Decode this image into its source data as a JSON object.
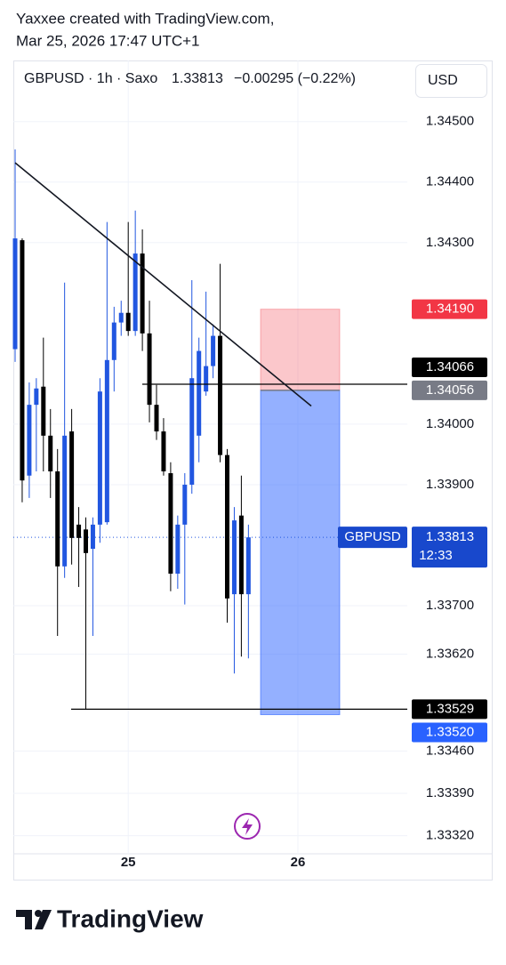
{
  "header": {
    "author_line": "Yaxxee created with TradingView.com,",
    "date_line": "Mar 25, 2026 17:47 UTC+1"
  },
  "chart_data": {
    "type": "candlestick",
    "symbol_info": "GBPUSD · 1h · Saxo",
    "last": "1.33813",
    "change": "−0.00295 (−0.22%)",
    "currency": "USD",
    "categories": [
      null,
      null,
      null,
      null,
      null,
      null,
      null,
      null,
      null,
      null,
      null,
      null,
      null,
      null,
      null,
      null,
      "25",
      null,
      null,
      null,
      null,
      null,
      null,
      null,
      null,
      null,
      null,
      null,
      null,
      null,
      null,
      null,
      null,
      null,
      null,
      null,
      null,
      null,
      null,
      null,
      "26",
      null,
      null,
      null,
      null,
      null,
      null,
      null,
      null,
      null,
      null,
      null,
      null,
      null,
      null,
      null
    ],
    "series": [
      {
        "name": "GBPUSD",
        "up_color": "#2156e0",
        "down_color": "#000000",
        "open": [
          1.34124,
          1.34304,
          1.33915,
          1.34032,
          1.34062,
          1.33981,
          1.33922,
          1.33765,
          1.33988,
          1.33834,
          1.33826,
          1.33794,
          1.33834,
          1.33838,
          1.34106,
          1.34168,
          1.34184,
          1.34154,
          1.34282,
          1.3415,
          1.34032,
          1.33988,
          1.33919,
          1.33753,
          1.33834,
          1.339,
          1.33981,
          1.34054,
          1.34096,
          1.34146,
          1.33949,
          1.33719,
          1.33849,
          1.33719,
          null,
          null,
          null,
          null,
          null,
          null,
          null,
          null,
          null,
          null,
          null,
          null,
          null,
          null,
          null,
          null,
          null,
          null,
          null,
          null,
          null,
          null
        ],
        "high": [
          1.34454,
          1.34307,
          1.34069,
          1.34076,
          1.34143,
          1.34025,
          1.33959,
          1.34234,
          1.34025,
          1.33863,
          1.33846,
          1.33846,
          1.34076,
          1.34334,
          1.34194,
          1.34204,
          1.34334,
          1.34353,
          1.34322,
          1.34204,
          1.34065,
          1.3401,
          1.33937,
          1.33849,
          1.33919,
          1.34238,
          1.34143,
          1.34219,
          1.34165,
          1.34265,
          1.33959,
          1.33863,
          1.33915,
          1.33834,
          null,
          null,
          null,
          null,
          null,
          null,
          null,
          null,
          null,
          null,
          null,
          null,
          null,
          null,
          null,
          null,
          null,
          null,
          null,
          null,
          null,
          null
        ],
        "low": [
          1.34103,
          1.33871,
          1.33878,
          1.33922,
          1.33922,
          1.33878,
          1.3365,
          1.33746,
          1.33768,
          1.33731,
          1.33529,
          1.3365,
          1.33804,
          1.33834,
          1.34054,
          1.34146,
          1.34146,
          1.34146,
          1.34121,
          1.34003,
          1.33974,
          1.33915,
          1.33724,
          1.33728,
          1.33702,
          1.33885,
          1.33937,
          1.34047,
          1.34076,
          1.33937,
          1.33672,
          1.33588,
          1.33616,
          1.33613,
          null,
          null,
          null,
          null,
          null,
          null,
          null,
          null,
          null,
          null,
          null,
          null,
          null,
          null,
          null,
          null,
          null,
          null,
          null,
          null,
          null,
          null
        ],
        "close": [
          1.34307,
          1.33907,
          1.34032,
          1.34059,
          1.33981,
          1.33922,
          1.33765,
          1.33981,
          1.33812,
          1.33812,
          1.33787,
          1.33834,
          1.34054,
          1.34106,
          1.34168,
          1.34184,
          1.34154,
          1.34282,
          1.3415,
          1.34032,
          1.33988,
          1.33922,
          1.33753,
          1.33834,
          1.339,
          1.34076,
          1.34121,
          1.34096,
          1.34146,
          1.33949,
          1.33712,
          1.33841,
          1.33719,
          1.33813,
          null,
          null,
          null,
          null,
          null,
          null,
          null,
          null,
          null,
          null,
          null,
          null,
          null,
          null,
          null,
          null,
          null,
          null,
          null,
          null,
          null,
          null
        ]
      }
    ],
    "ylim": [
      1.3329,
      1.34601
    ],
    "yticks": [
      {
        "value": 1.345,
        "label": "1.34500"
      },
      {
        "value": 1.344,
        "label": "1.34400"
      },
      {
        "value": 1.343,
        "label": "1.34300"
      },
      {
        "value": 1.34,
        "label": "1.34000"
      },
      {
        "value": 1.339,
        "label": "1.33900"
      },
      {
        "value": 1.337,
        "label": "1.33700"
      },
      {
        "value": 1.3362,
        "label": "1.33620"
      },
      {
        "value": 1.3346,
        "label": "1.33460"
      },
      {
        "value": 1.3339,
        "label": "1.33390"
      },
      {
        "value": 1.3332,
        "label": "1.33320"
      }
    ],
    "grid": true,
    "trend_line": [
      1.34432,
      1.3403
    ],
    "horizontal_lines": [
      {
        "value": 1.34066,
        "label": "1.34066"
      },
      {
        "value": 1.33529,
        "label": "1.33529"
      }
    ],
    "position": {
      "stop": {
        "value": 1.3419,
        "label": "1.34190"
      },
      "entry": {
        "value": 1.34056,
        "label": "1.34056"
      },
      "target": {
        "value": 1.3352,
        "label": "1.33520"
      }
    },
    "last_price": {
      "value": 1.33813,
      "label": "1.33813",
      "symbol": "GBPUSD",
      "countdown": "12:33"
    }
  },
  "footer": {
    "brand": "TradingView"
  }
}
